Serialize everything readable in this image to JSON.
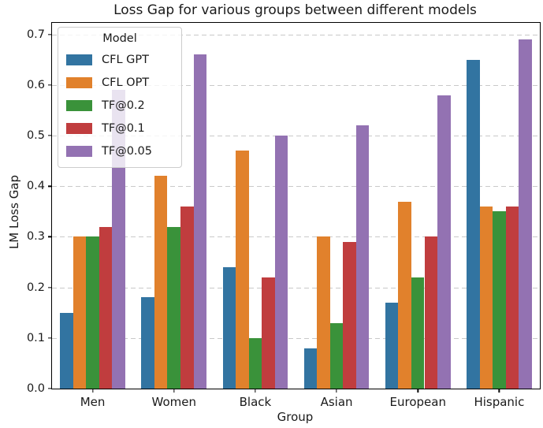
{
  "title": "Loss Gap for various groups between different models",
  "chart_data": {
    "type": "bar",
    "title": "Loss Gap for various groups between different models",
    "xlabel": "Group",
    "ylabel": "LM Loss Gap",
    "categories": [
      "Men",
      "Women",
      "Black",
      "Asian",
      "European",
      "Hispanic"
    ],
    "series": [
      {
        "name": "CFL GPT",
        "color": "#3274a1",
        "values": [
          0.15,
          0.18,
          0.24,
          0.08,
          0.17,
          0.65
        ]
      },
      {
        "name": "CFL OPT",
        "color": "#e1812c",
        "values": [
          0.3,
          0.42,
          0.47,
          0.3,
          0.37,
          0.36
        ]
      },
      {
        "name": "TF@0.2",
        "color": "#3a923a",
        "values": [
          0.3,
          0.32,
          0.1,
          0.13,
          0.22,
          0.35
        ]
      },
      {
        "name": "TF@0.1",
        "color": "#c03d3e",
        "values": [
          0.32,
          0.36,
          0.22,
          0.29,
          0.3,
          0.36
        ]
      },
      {
        "name": "TF@0.05",
        "color": "#9372b2",
        "values": [
          0.59,
          0.66,
          0.5,
          0.52,
          0.58,
          0.69
        ]
      }
    ],
    "legend_title": "Model",
    "legend_position": "upper left",
    "ylim": [
      0,
      0.723
    ],
    "yticks": [
      "0.0",
      "0.1",
      "0.2",
      "0.3",
      "0.4",
      "0.5",
      "0.6",
      "0.7"
    ],
    "grid": "horizontal dashed",
    "grid_color": "#c9c9c9"
  }
}
